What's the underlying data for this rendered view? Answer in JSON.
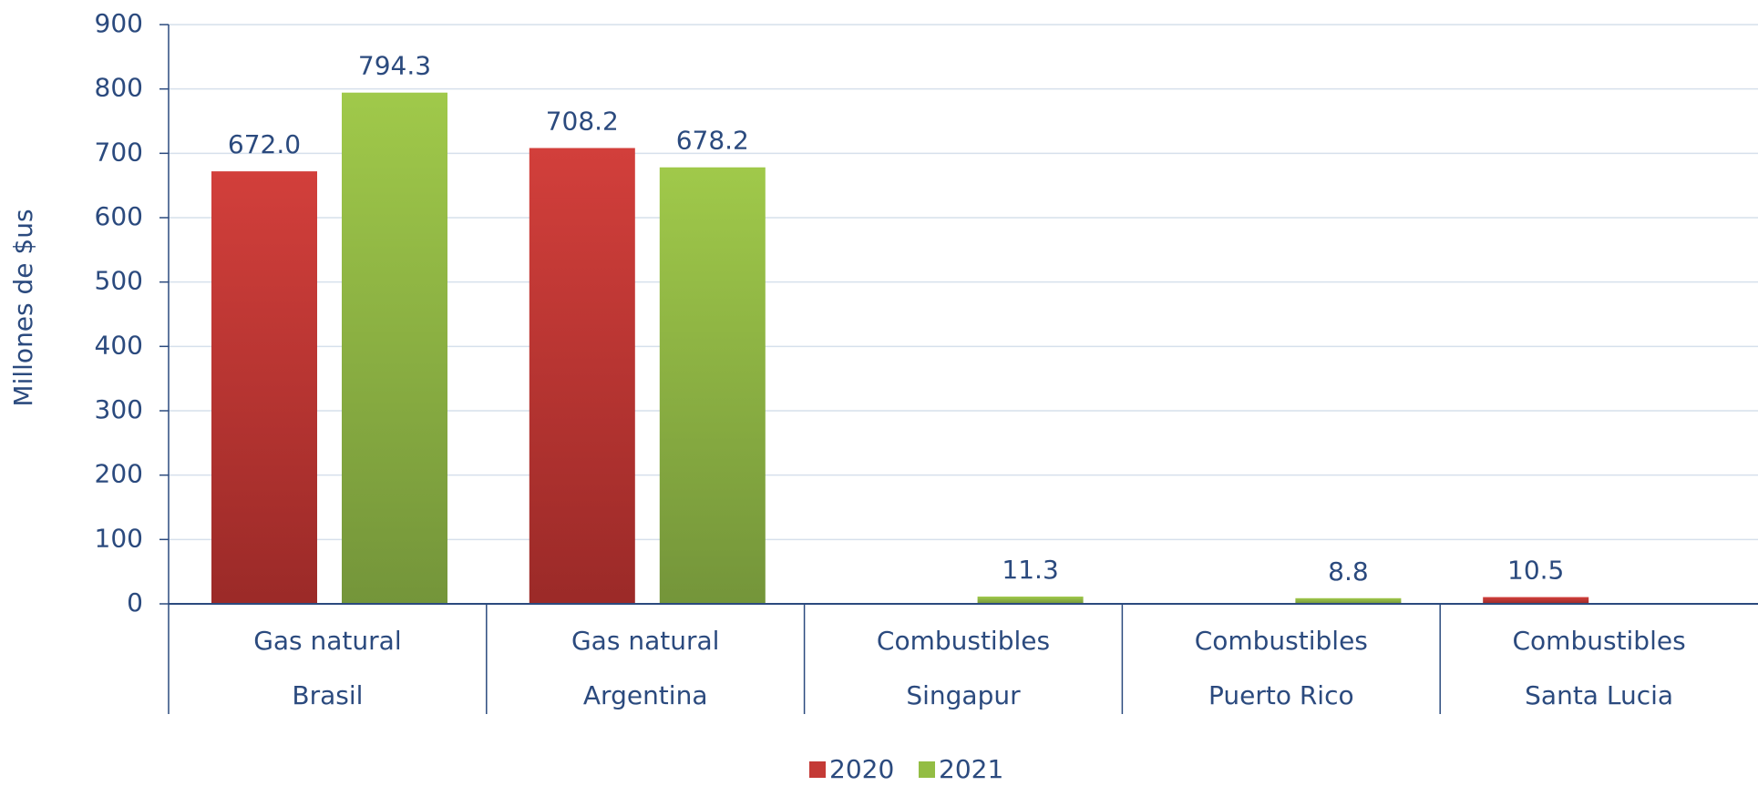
{
  "chart_data": {
    "type": "bar",
    "y_label": "Millones de $us",
    "category_groups": [
      "Gas natural",
      "Gas natural",
      "Combustibles",
      "Combustibles",
      "Combustibles"
    ],
    "categories": [
      "Brasil",
      "Argentina",
      "Singapur",
      "Puerto Rico",
      "Santa Lucia"
    ],
    "series": [
      {
        "name": "2020",
        "color": "#c43a36",
        "values": [
          672.0,
          708.2,
          null,
          null,
          10.5
        ],
        "value_labels": [
          "672.0",
          "708.2",
          null,
          null,
          "10.5"
        ]
      },
      {
        "name": "2021",
        "color": "#93bd44",
        "values": [
          794.3,
          678.2,
          11.3,
          8.8,
          null
        ],
        "value_labels": [
          "794.3",
          "678.2",
          "11.3",
          "8.8",
          null
        ]
      }
    ],
    "ylim": [
      0,
      900
    ],
    "yticks": [
      0,
      100,
      200,
      300,
      400,
      500,
      600,
      700,
      800,
      900
    ],
    "grid": true
  }
}
